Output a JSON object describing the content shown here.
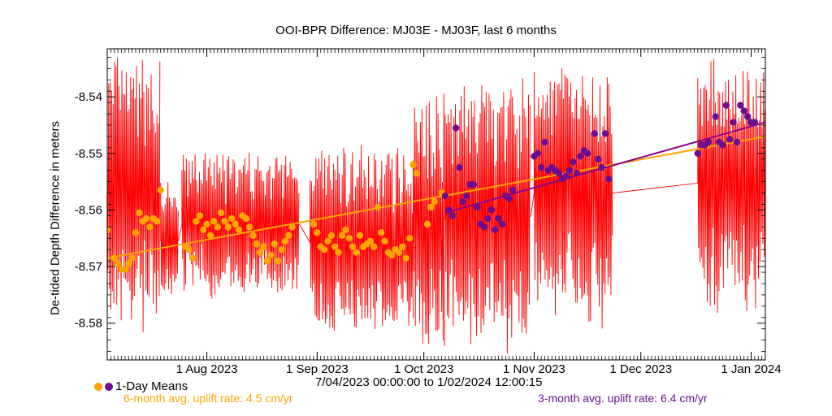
{
  "colors": {
    "raw": "#ff0000",
    "mean_6mo": "#ffa500",
    "mean_3mo": "#6b0e8f",
    "fit_6mo": "#ffa500",
    "fit_3mo": "#8a008a"
  },
  "legend": {
    "label": "1-Day Means",
    "icons": [
      "orange-dot-icon",
      "purple-dot-icon"
    ]
  },
  "range_text": "7/04/2023 00:00:00 to  1/02/2024 12:00:15",
  "rates": {
    "six_month": "6-month avg. uplift rate:  4.5 cm/yr",
    "three_month": "3-month avg. uplift rate:  6.4 cm/yr"
  },
  "chart_data": {
    "type": "line",
    "title": "OOI-BPR Difference: MJ03E - MJ03F, last 6 months",
    "xlabel": "",
    "ylabel": "De-tided Depth Difference in meters",
    "xlim": [
      "2023-07-04",
      "2024-01-05"
    ],
    "ylim": [
      -8.5865,
      -8.5315
    ],
    "x_ticks": [
      {
        "date": "2023-08-01",
        "label": "1 Aug 2023"
      },
      {
        "date": "2023-09-01",
        "label": "1 Sep 2023"
      },
      {
        "date": "2023-10-01",
        "label": "1 Oct 2023"
      },
      {
        "date": "2023-11-01",
        "label": "1 Nov 2023"
      },
      {
        "date": "2023-12-01",
        "label": "1 Dec 2023"
      },
      {
        "date": "2024-01-01",
        "label": "1 Jan 2024"
      }
    ],
    "y_ticks": [
      -8.54,
      -8.55,
      -8.56,
      -8.57,
      -8.58
    ],
    "grid": false,
    "legend_position": "bottom-left",
    "series": [
      {
        "name": "",
        "kind": "raw-band",
        "segments": [
          {
            "start": "2023-07-04",
            "end": "2023-07-19",
            "low": -8.5835,
            "high": -8.5315
          },
          {
            "start": "2023-07-19",
            "end": "2023-07-24",
            "low": -8.576,
            "high": -8.555
          },
          {
            "start": "2023-07-25",
            "end": "2023-08-27",
            "low": -8.576,
            "high": -8.549
          },
          {
            "start": "2023-08-30",
            "end": "2023-09-28",
            "low": -8.5835,
            "high": -8.548
          },
          {
            "start": "2023-09-28",
            "end": "2023-10-07",
            "low": -8.5865,
            "high": -8.537
          },
          {
            "start": "2023-10-07",
            "end": "2023-10-31",
            "low": -8.5865,
            "high": -8.536
          },
          {
            "start": "2023-11-01",
            "end": "2023-11-23",
            "low": -8.581,
            "high": -8.533
          },
          {
            "start": "2023-12-17",
            "end": "2024-01-05",
            "low": -8.5785,
            "high": -8.532
          }
        ]
      },
      {
        "name": "1-Day Means",
        "kind": "scatter",
        "color_key": "mean_6mo",
        "points": [
          [
            "2023-07-04",
            -8.5635
          ],
          [
            "2023-07-06",
            -8.5685
          ],
          [
            "2023-07-07",
            -8.5695
          ],
          [
            "2023-07-08",
            -8.5705
          ],
          [
            "2023-07-09",
            -8.5705
          ],
          [
            "2023-07-10",
            -8.5695
          ],
          [
            "2023-07-11",
            -8.5685
          ],
          [
            "2023-07-12",
            -8.564
          ],
          [
            "2023-07-13",
            -8.5605
          ],
          [
            "2023-07-14",
            -8.562
          ],
          [
            "2023-07-15",
            -8.5615
          ],
          [
            "2023-07-16",
            -8.563
          ],
          [
            "2023-07-17",
            -8.5615
          ],
          [
            "2023-07-18",
            -8.562
          ],
          [
            "2023-07-19",
            -8.5565
          ],
          [
            "2023-07-26",
            -8.5665
          ],
          [
            "2023-07-27",
            -8.567
          ],
          [
            "2023-07-28",
            -8.5685
          ],
          [
            "2023-07-29",
            -8.562
          ],
          [
            "2023-07-30",
            -8.561
          ],
          [
            "2023-07-31",
            -8.5635
          ],
          [
            "2023-08-01",
            -8.5625
          ],
          [
            "2023-08-02",
            -8.5645
          ],
          [
            "2023-08-03",
            -8.562
          ],
          [
            "2023-08-04",
            -8.563
          ],
          [
            "2023-08-05",
            -8.5605
          ],
          [
            "2023-08-06",
            -8.562
          ],
          [
            "2023-08-07",
            -8.563
          ],
          [
            "2023-08-08",
            -8.5615
          ],
          [
            "2023-08-09",
            -8.5625
          ],
          [
            "2023-08-10",
            -8.5635
          ],
          [
            "2023-08-11",
            -8.561
          ],
          [
            "2023-08-12",
            -8.5615
          ],
          [
            "2023-08-13",
            -8.563
          ],
          [
            "2023-08-14",
            -8.5645
          ],
          [
            "2023-08-15",
            -8.566
          ],
          [
            "2023-08-16",
            -8.5675
          ],
          [
            "2023-08-17",
            -8.5665
          ],
          [
            "2023-08-18",
            -8.569
          ],
          [
            "2023-08-19",
            -8.568
          ],
          [
            "2023-08-20",
            -8.566
          ],
          [
            "2023-08-21",
            -8.569
          ],
          [
            "2023-08-22",
            -8.567
          ],
          [
            "2023-08-23",
            -8.5655
          ],
          [
            "2023-08-24",
            -8.5645
          ],
          [
            "2023-08-25",
            -8.563
          ],
          [
            "2023-08-31",
            -8.5625
          ],
          [
            "2023-09-01",
            -8.564
          ],
          [
            "2023-09-02",
            -8.5665
          ],
          [
            "2023-09-03",
            -8.567
          ],
          [
            "2023-09-04",
            -8.5655
          ],
          [
            "2023-09-05",
            -8.5645
          ],
          [
            "2023-09-06",
            -8.5665
          ],
          [
            "2023-09-07",
            -8.5675
          ],
          [
            "2023-09-08",
            -8.5645
          ],
          [
            "2023-09-09",
            -8.5635
          ],
          [
            "2023-09-10",
            -8.565
          ],
          [
            "2023-09-11",
            -8.5665
          ],
          [
            "2023-09-12",
            -8.5675
          ],
          [
            "2023-09-13",
            -8.5645
          ],
          [
            "2023-09-14",
            -8.5665
          ],
          [
            "2023-09-15",
            -8.566
          ],
          [
            "2023-09-16",
            -8.5655
          ],
          [
            "2023-09-17",
            -8.5665
          ],
          [
            "2023-09-18",
            -8.5595
          ],
          [
            "2023-09-19",
            -8.564
          ],
          [
            "2023-09-20",
            -8.5655
          ],
          [
            "2023-09-21",
            -8.5675
          ],
          [
            "2023-09-22",
            -8.568
          ],
          [
            "2023-09-23",
            -8.567
          ],
          [
            "2023-09-24",
            -8.5675
          ],
          [
            "2023-09-25",
            -8.5665
          ],
          [
            "2023-09-26",
            -8.5685
          ],
          [
            "2023-09-27",
            -8.565
          ],
          [
            "2023-09-28",
            -8.552
          ],
          [
            "2023-09-29",
            -8.5535
          ],
          [
            "2023-10-02",
            -8.5625
          ],
          [
            "2023-10-03",
            -8.5595
          ],
          [
            "2023-10-04",
            -8.5585
          ],
          [
            "2023-10-06",
            -8.557
          ]
        ]
      },
      {
        "name": "1-Day Means",
        "kind": "scatter",
        "color_key": "mean_3mo",
        "points": [
          [
            "2023-10-07",
            -8.5575
          ],
          [
            "2023-10-08",
            -8.56
          ],
          [
            "2023-10-09",
            -8.561
          ],
          [
            "2023-10-10",
            -8.5455
          ],
          [
            "2023-10-11",
            -8.5525
          ],
          [
            "2023-10-12",
            -8.5585
          ],
          [
            "2023-10-13",
            -8.5575
          ],
          [
            "2023-10-14",
            -8.5555
          ],
          [
            "2023-10-15",
            -8.5555
          ],
          [
            "2023-10-16",
            -8.5595
          ],
          [
            "2023-10-17",
            -8.5625
          ],
          [
            "2023-10-18",
            -8.563
          ],
          [
            "2023-10-19",
            -8.5615
          ],
          [
            "2023-10-20",
            -8.56
          ],
          [
            "2023-10-21",
            -8.5635
          ],
          [
            "2023-10-22",
            -8.5615
          ],
          [
            "2023-10-23",
            -8.5625
          ],
          [
            "2023-10-24",
            -8.5575
          ],
          [
            "2023-10-25",
            -8.558
          ],
          [
            "2023-10-26",
            -8.5565
          ],
          [
            "2023-11-01",
            -8.5505
          ],
          [
            "2023-11-02",
            -8.55
          ],
          [
            "2023-11-03",
            -8.5525
          ],
          [
            "2023-11-04",
            -8.548
          ],
          [
            "2023-11-05",
            -8.553
          ],
          [
            "2023-11-06",
            -8.5525
          ],
          [
            "2023-11-07",
            -8.553
          ],
          [
            "2023-11-08",
            -8.5535
          ],
          [
            "2023-11-09",
            -8.5545
          ],
          [
            "2023-11-10",
            -8.554
          ],
          [
            "2023-11-11",
            -8.553
          ],
          [
            "2023-11-12",
            -8.5515
          ],
          [
            "2023-11-13",
            -8.5535
          ],
          [
            "2023-11-14",
            -8.5505
          ],
          [
            "2023-11-15",
            -8.5495
          ],
          [
            "2023-11-16",
            -8.55
          ],
          [
            "2023-11-18",
            -8.5465
          ],
          [
            "2023-11-19",
            -8.551
          ],
          [
            "2023-11-20",
            -8.5525
          ],
          [
            "2023-11-21",
            -8.5465
          ],
          [
            "2023-11-22",
            -8.5545
          ],
          [
            "2023-12-17",
            -8.55
          ],
          [
            "2023-12-18",
            -8.5485
          ],
          [
            "2023-12-19",
            -8.5485
          ],
          [
            "2023-12-20",
            -8.548
          ],
          [
            "2023-12-22",
            -8.5435
          ],
          [
            "2023-12-23",
            -8.548
          ],
          [
            "2023-12-24",
            -8.5485
          ],
          [
            "2023-12-25",
            -8.5415
          ],
          [
            "2023-12-26",
            -8.5475
          ],
          [
            "2023-12-27",
            -8.5445
          ],
          [
            "2023-12-28",
            -8.548
          ],
          [
            "2023-12-29",
            -8.5415
          ],
          [
            "2023-12-30",
            -8.5425
          ],
          [
            "2023-12-31",
            -8.5435
          ],
          [
            "2024-01-01",
            -8.5445
          ],
          [
            "2024-01-02",
            -8.5445
          ]
        ]
      },
      {
        "name": "",
        "kind": "fit",
        "color_key": "fit_6mo",
        "points": [
          [
            "2023-07-04",
            -8.5685
          ],
          [
            "2024-01-05",
            -8.547
          ]
        ]
      },
      {
        "name": "",
        "kind": "fit",
        "color_key": "fit_3mo",
        "points": [
          [
            "2023-10-07",
            -8.5605
          ],
          [
            "2024-01-05",
            -8.5445
          ]
        ]
      }
    ]
  }
}
